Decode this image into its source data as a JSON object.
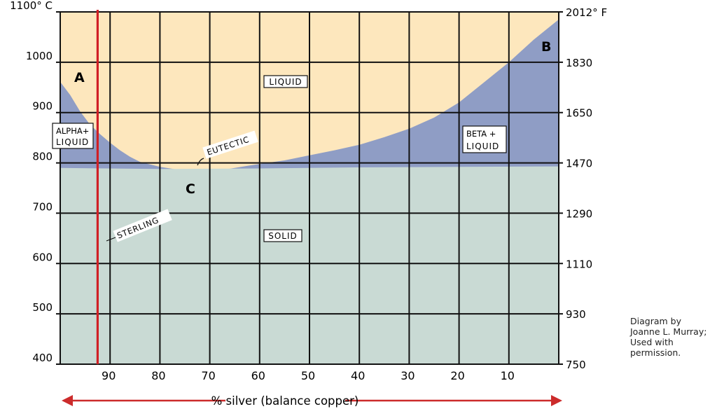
{
  "chart_data": {
    "type": "area",
    "xlabel": "% silver (balance copper)",
    "x_axis_ticks": [
      "90",
      "80",
      "70",
      "60",
      "50",
      "40",
      "30",
      "20",
      "10"
    ],
    "left_axis_ticks": [
      "1100° C",
      "1000",
      "900",
      "800",
      "700",
      "600",
      "500",
      "400"
    ],
    "right_axis_ticks": [
      "2012° F",
      "1830",
      "1650",
      "1470",
      "1290",
      "1110",
      "930",
      "750"
    ],
    "x_range": [
      100,
      0
    ],
    "y_range_celsius": [
      400,
      1100
    ],
    "grid": true,
    "regions": {
      "liquid": "LIQUID",
      "alpha_liquid": [
        "ALPHA+",
        "LIQUID"
      ],
      "beta_liquid": [
        "BETA +",
        "LIQUID"
      ],
      "solid": "SOLID"
    },
    "points": {
      "a": {
        "label": "A",
        "silver_pct": 100,
        "temp_c": 961
      },
      "b": {
        "label": "B",
        "silver_pct": 0,
        "temp_c": 1085
      },
      "c": {
        "label": "C",
        "silver_pct": 72,
        "temp_c": 779
      }
    },
    "annotations": {
      "eutectic": "EUTECTIC",
      "sterling": "STERLING"
    },
    "sterling_line_silver_pct": 92.5,
    "eutectic_temp_c": 779,
    "liquidus": [
      {
        "x": 100,
        "y": 961
      },
      {
        "x": 98,
        "y": 935
      },
      {
        "x": 96,
        "y": 902
      },
      {
        "x": 94,
        "y": 876
      },
      {
        "x": 92,
        "y": 857
      },
      {
        "x": 90,
        "y": 840
      },
      {
        "x": 88,
        "y": 825
      },
      {
        "x": 86,
        "y": 812
      },
      {
        "x": 84,
        "y": 802
      },
      {
        "x": 80,
        "y": 792
      },
      {
        "x": 76,
        "y": 786
      },
      {
        "x": 72,
        "y": 779
      },
      {
        "x": 68,
        "y": 785
      },
      {
        "x": 62,
        "y": 795
      },
      {
        "x": 55,
        "y": 805
      },
      {
        "x": 50,
        "y": 815
      },
      {
        "x": 45,
        "y": 825
      },
      {
        "x": 40,
        "y": 836
      },
      {
        "x": 35,
        "y": 851
      },
      {
        "x": 30,
        "y": 868
      },
      {
        "x": 25,
        "y": 890
      },
      {
        "x": 20,
        "y": 920
      },
      {
        "x": 15,
        "y": 960
      },
      {
        "x": 10,
        "y": 1000
      },
      {
        "x": 5,
        "y": 1045
      },
      {
        "x": 0,
        "y": 1085
      }
    ],
    "solidus": [
      {
        "x": 100,
        "y": 790
      },
      {
        "x": 80,
        "y": 788
      },
      {
        "x": 60,
        "y": 789
      },
      {
        "x": 40,
        "y": 791
      },
      {
        "x": 20,
        "y": 792
      },
      {
        "x": 0,
        "y": 793
      }
    ],
    "colors": {
      "liquid": "#fde7bd",
      "two_phase": "#8f9dc5",
      "solid": "#c9dad4",
      "grid": "#111111",
      "sterling_line": "#d01f25",
      "axis_arrow": "#cc2b2b"
    }
  },
  "credit": [
    "Diagram by",
    "Joanne L. Murray;",
    "Used with",
    "permission."
  ]
}
